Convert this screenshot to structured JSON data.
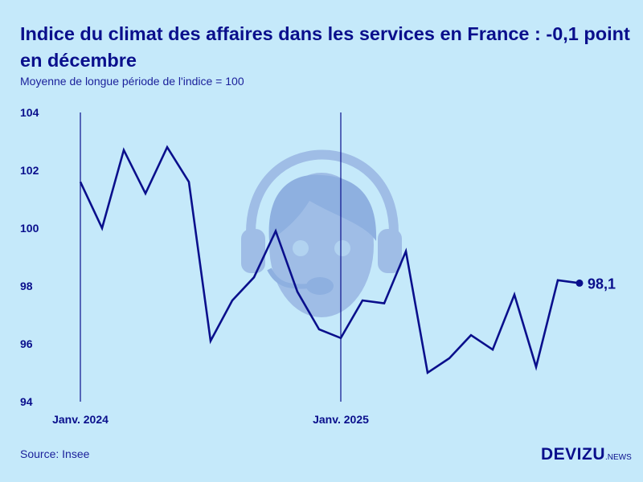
{
  "title": "Indice du climat des affaires dans les services en France : -0,1 point en décembre",
  "subtitle": "Moyenne de longue période de l'indice = 100",
  "source": "Source: Insee",
  "logo": {
    "main": "DEVIZU",
    "suffix": ".NEWS"
  },
  "colors": {
    "background": "#c5e9fa",
    "line": "#0a0f8c",
    "illustration": "#9fbde6"
  },
  "illustration_icon": "call-center-headset-icon",
  "chart_data": {
    "type": "line",
    "title": "Indice du climat des affaires dans les services en France : -0,1 point en décembre",
    "subtitle": "Moyenne de longue période de l'indice = 100",
    "xlabel": "",
    "ylabel": "",
    "ylim": [
      94,
      104
    ],
    "yticks": [
      94,
      96,
      98,
      100,
      102,
      104
    ],
    "x": [
      "2024-01",
      "2024-02",
      "2024-03",
      "2024-04",
      "2024-05",
      "2024-06",
      "2024-07",
      "2024-08",
      "2024-09",
      "2024-10",
      "2024-11",
      "2024-12",
      "2025-01",
      "2025-02",
      "2025-03",
      "2025-04",
      "2025-05",
      "2025-06",
      "2025-07",
      "2025-08",
      "2025-09",
      "2025-10",
      "2025-11",
      "2025-12"
    ],
    "xtick_labels": [
      {
        "x": "2024-01",
        "label": "Janv. 2024"
      },
      {
        "x": "2025-01",
        "label": "Janv. 2025"
      }
    ],
    "values": [
      101.6,
      100.0,
      102.7,
      101.2,
      102.8,
      101.6,
      96.1,
      97.5,
      98.3,
      99.9,
      97.8,
      96.5,
      96.2,
      97.5,
      97.4,
      99.2,
      95.0,
      95.5,
      96.3,
      95.8,
      97.7,
      95.2,
      98.2,
      98.1
    ],
    "last_point_label": "98,1",
    "grid": false,
    "vertical_markers": [
      "2024-01",
      "2025-01"
    ]
  }
}
